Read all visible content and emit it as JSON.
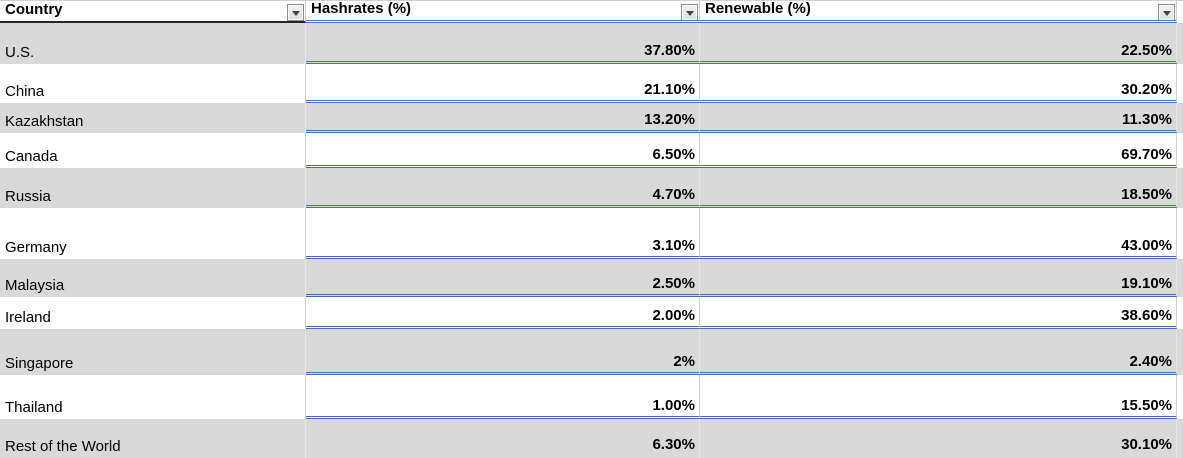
{
  "table": {
    "columns": [
      {
        "id": "country",
        "label": "Country"
      },
      {
        "id": "hashrates",
        "label": "Hashrates (%)"
      },
      {
        "id": "renewable",
        "label": "Renewable (%)"
      }
    ],
    "rows": [
      {
        "country": "U.S.",
        "hashrates": "37.80%",
        "renewable": "22.50%"
      },
      {
        "country": "China",
        "hashrates": "21.10%",
        "renewable": "30.20%"
      },
      {
        "country": "Kazakhstan",
        "hashrates": "13.20%",
        "renewable": "11.30%"
      },
      {
        "country": "Canada",
        "hashrates": "6.50%",
        "renewable": "69.70%"
      },
      {
        "country": "Russia",
        "hashrates": "4.70%",
        "renewable": "18.50%"
      },
      {
        "country": "Germany",
        "hashrates": "3.10%",
        "renewable": "43.00%"
      },
      {
        "country": "Malaysia",
        "hashrates": "2.50%",
        "renewable": "19.10%"
      },
      {
        "country": "Ireland",
        "hashrates": "2.00%",
        "renewable": "38.60%"
      },
      {
        "country": "Singapore",
        "hashrates": "2%",
        "renewable": "2.40%"
      },
      {
        "country": "Thailand",
        "hashrates": "1.00%",
        "renewable": "15.50%"
      },
      {
        "country": "Rest of the World",
        "hashrates": "6.30%",
        "renewable": "30.10%"
      }
    ]
  },
  "icons": {
    "filter": "chevron-down-icon"
  },
  "colors": {
    "band_gray": "#d9d9d9",
    "accent_border": "#4a6da4",
    "header_underline": "#262626",
    "grid_line": "#d0d0d0",
    "btn_border": "#8f8f8f",
    "btn_arrow": "#444444"
  }
}
